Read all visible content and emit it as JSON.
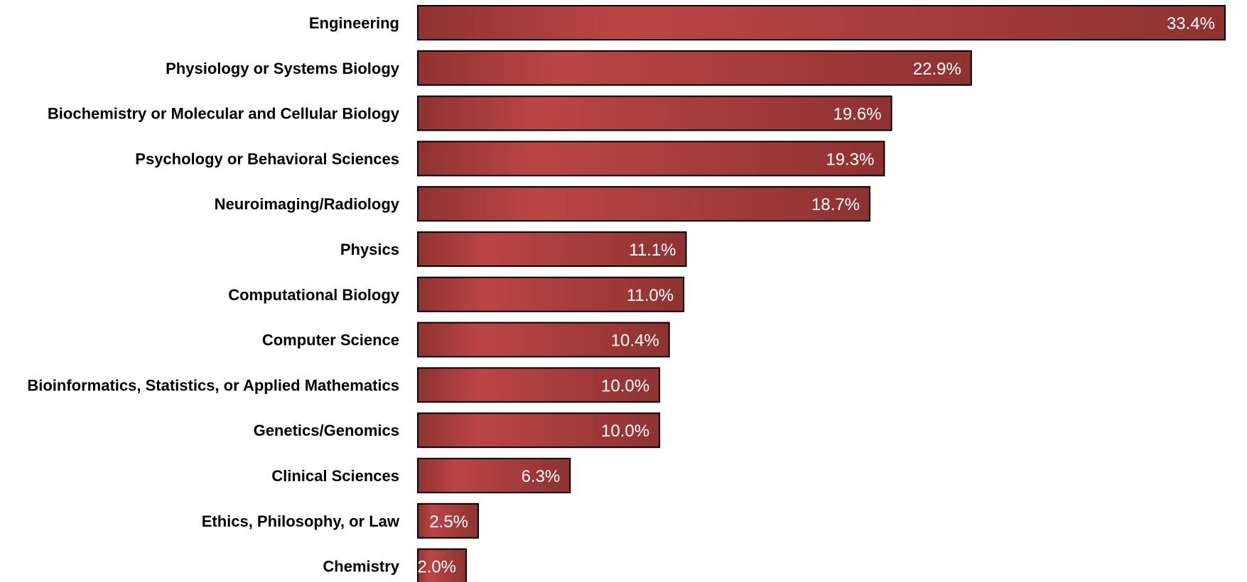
{
  "chart_data": {
    "type": "bar",
    "orientation": "horizontal",
    "categories": [
      "Engineering",
      "Physiology or Systems Biology",
      "Biochemistry or Molecular and Cellular Biology",
      "Psychology or Behavioral Sciences",
      "Neuroimaging/Radiology",
      "Physics",
      "Computational Biology",
      "Computer Science",
      "Bioinformatics, Statistics, or Applied Mathematics",
      "Genetics/Genomics",
      "Clinical Sciences",
      "Ethics, Philosophy, or Law",
      "Chemistry"
    ],
    "values": [
      33.4,
      22.9,
      19.6,
      19.3,
      18.7,
      11.1,
      11.0,
      10.4,
      10.0,
      10.0,
      6.3,
      2.5,
      2.0
    ],
    "value_labels": [
      "33.4%",
      "22.9%",
      "19.6%",
      "19.3%",
      "18.7%",
      "11.1%",
      "11.0%",
      "10.4%",
      "10.0%",
      "10.0%",
      "6.3%",
      "2.5%",
      "2.0%"
    ],
    "unit": "%",
    "xlim": [
      0,
      33.4
    ],
    "grid": false,
    "legend": "none",
    "colors": {
      "bar_dark": "#8f3232",
      "bar_light": "#bb4545",
      "bar_edge": "#000000",
      "value_text": "#ffffff",
      "category_text": "#000000"
    }
  }
}
